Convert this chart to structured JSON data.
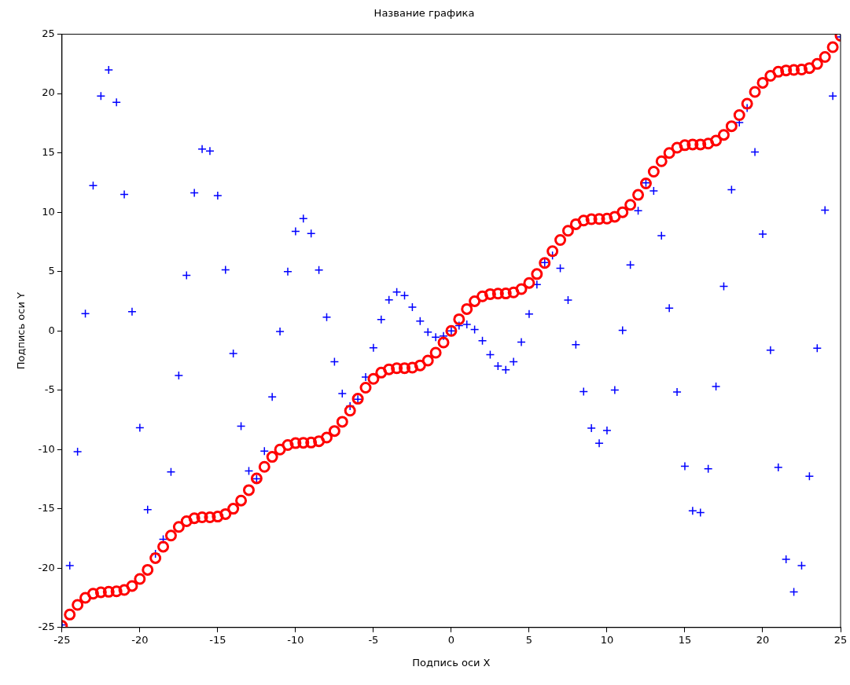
{
  "chart_data": {
    "type": "scatter",
    "title": "Название графика",
    "xlabel": "Подпись оси X",
    "ylabel": "Подпись оси Y",
    "x": [
      -25,
      -24.5,
      -24,
      -23.5,
      -23,
      -22.5,
      -22,
      -21.5,
      -21,
      -20.5,
      -20,
      -19.5,
      -19,
      -18.5,
      -18,
      -17.5,
      -17,
      -16.5,
      -16,
      -15.5,
      -15,
      -14.5,
      -14,
      -13.5,
      -13,
      -12.5,
      -12,
      -11.5,
      -11,
      -10.5,
      -10,
      -9.5,
      -9,
      -8.5,
      -8,
      -7.5,
      -7,
      -6.5,
      -6,
      -5.5,
      -5,
      -4.5,
      -4,
      -3.5,
      -3,
      -2.5,
      -2,
      -1.5,
      -1,
      -0.5,
      0,
      0.5,
      1,
      1.5,
      2,
      2.5,
      3,
      3.5,
      4,
      4.5,
      5,
      5.5,
      6,
      6.5,
      7,
      7.5,
      8,
      8.5,
      9,
      9.5,
      10,
      10.5,
      11,
      11.5,
      12,
      12.5,
      13,
      13.5,
      14,
      14.5,
      15,
      15.5,
      16,
      16.5,
      17,
      17.5,
      18,
      18.5,
      19,
      19.5,
      20,
      20.5,
      21,
      21.5,
      22,
      22.5,
      23,
      23.5,
      24,
      24.5,
      25
    ],
    "series": [
      {
        "color": "#ff0000",
        "marker": "circle",
        "values": [
          -24.87,
          -23.91,
          -23.09,
          -22.5,
          -22.15,
          -22.03,
          -21.99,
          -21.95,
          -21.84,
          -21.5,
          -20.91,
          -20.14,
          -19.15,
          -18.19,
          -17.25,
          -16.52,
          -16.04,
          -15.79,
          -15.71,
          -15.71,
          -15.65,
          -15.44,
          -14.99,
          -14.3,
          -13.42,
          -12.43,
          -11.46,
          -10.62,
          -10,
          -9.62,
          -9.46,
          -9.43,
          -9.41,
          -9.3,
          -8.99,
          -8.44,
          -7.66,
          -6.72,
          -5.72,
          -4.79,
          -4.04,
          -3.52,
          -3.24,
          -3.15,
          -3.14,
          -3.1,
          -2.91,
          -2.5,
          -1.84,
          -0.98,
          0,
          0.98,
          1.84,
          2.5,
          2.91,
          3.1,
          3.14,
          3.15,
          3.24,
          3.52,
          4.04,
          4.79,
          5.72,
          6.72,
          7.66,
          8.44,
          8.99,
          9.3,
          9.41,
          9.43,
          9.46,
          9.62,
          10,
          10.62,
          11.46,
          12.43,
          13.42,
          14.3,
          14.99,
          15.44,
          15.65,
          15.71,
          15.71,
          15.79,
          16.04,
          16.52,
          17.25,
          18.19,
          19.15,
          20.14,
          20.91,
          21.5,
          21.84,
          21.95,
          21.99,
          22.03,
          22.15,
          22.5,
          23.09,
          23.91,
          24.87
        ]
      },
      {
        "color": "#0000ff",
        "marker": "cross",
        "values": [
          -24.78,
          -19.79,
          -10.18,
          1.46,
          12.25,
          19.79,
          22,
          19.26,
          11.5,
          1.62,
          -8.16,
          -15.07,
          -18.79,
          -17.56,
          -11.89,
          -3.76,
          4.68,
          11.63,
          15.32,
          15.16,
          11.4,
          5.15,
          -1.91,
          -8.03,
          -11.8,
          -12.47,
          -10.13,
          -5.56,
          -0.05,
          4.99,
          8.39,
          9.47,
          8.2,
          5.12,
          1.16,
          -2.6,
          -5.28,
          -6.35,
          -5.76,
          -3.9,
          -1.42,
          0.95,
          2.61,
          3.28,
          2.97,
          2,
          0.83,
          -0.11,
          -0.54,
          -0.44,
          0,
          0.44,
          0.54,
          0.11,
          -0.83,
          -2,
          -2.97,
          -3.28,
          -2.61,
          -0.95,
          1.42,
          3.9,
          5.76,
          6.35,
          5.28,
          2.6,
          -1.16,
          -5.12,
          -8.2,
          -9.47,
          -8.39,
          -4.99,
          0.05,
          5.56,
          10.13,
          12.47,
          11.8,
          8.03,
          1.91,
          -5.15,
          -11.4,
          -15.16,
          -15.32,
          -11.63,
          -4.68,
          3.76,
          11.89,
          17.56,
          18.79,
          15.07,
          8.16,
          -1.62,
          -11.5,
          -19.26,
          -22,
          -19.79,
          -12.25,
          -1.46,
          10.18,
          19.79,
          24.78
        ]
      }
    ],
    "xlim": [
      -25,
      25
    ],
    "ylim": [
      -25,
      25
    ],
    "xticks": [
      -25,
      -20,
      -15,
      -10,
      -5,
      0,
      5,
      10,
      15,
      20,
      25
    ],
    "yticks": [
      -25,
      -20,
      -15,
      -10,
      -5,
      0,
      5,
      10,
      15,
      20,
      25
    ],
    "grid": false,
    "legend": false
  }
}
